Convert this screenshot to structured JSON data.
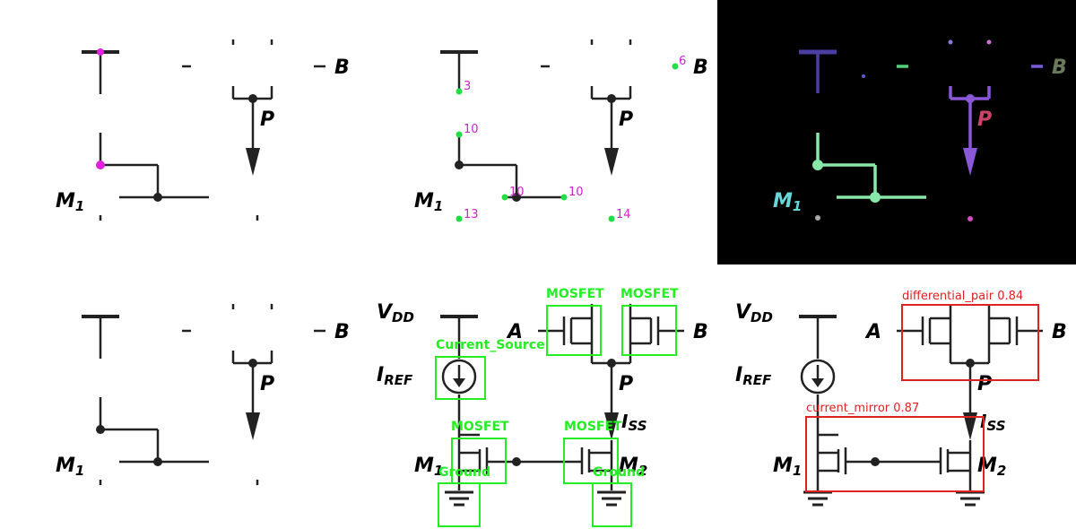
{
  "colors": {
    "wire": "#222222",
    "keypoint": "#e020e0",
    "node_green": "#22dd44",
    "node_label": "#cc22cc",
    "detection_box": "#22ee22",
    "region_box": "#dd2222"
  },
  "labels": {
    "B": "B",
    "P": "P",
    "M1": "M",
    "M1_sub": "1",
    "M2": "M",
    "M2_sub": "2",
    "VDD": "V",
    "VDD_sub": "DD",
    "IREF": "I",
    "IREF_sub": "REF",
    "A": "A",
    "ISS": "I",
    "ISS_sub": "SS"
  },
  "node_numbers": {
    "n3": "3",
    "n6": "6",
    "n10a": "10",
    "n10b": "10",
    "n10c": "10",
    "n13": "13",
    "n14": "14"
  },
  "detections": [
    {
      "label": "MOSFET"
    },
    {
      "label": "MOSFET"
    },
    {
      "label": "Current_Source"
    },
    {
      "label": "MOSFET"
    },
    {
      "label": "MOSFET"
    },
    {
      "label": "Ground"
    },
    {
      "label": "Ground"
    }
  ],
  "regions": [
    {
      "label": "differential_pair 0.84"
    },
    {
      "label": "current_mirror 0.87"
    }
  ]
}
